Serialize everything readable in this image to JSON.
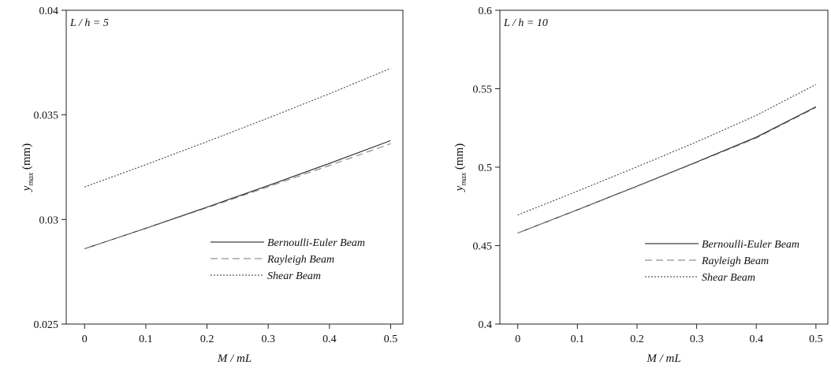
{
  "chart_data": [
    {
      "type": "line",
      "panel_label": "L / h = 5",
      "xlabel": "M / mL",
      "ylabel": "y_max (mm)",
      "ylabel_main": "y",
      "ylabel_sub": "max",
      "ylabel_unit": " (mm)",
      "xlim": [
        -0.03,
        0.52
      ],
      "ylim": [
        0.025,
        0.04
      ],
      "xticks": [
        "0",
        "0.1",
        "0.2",
        "0.3",
        "0.4",
        "0.5"
      ],
      "yticks": [
        "0.025",
        "0.03",
        "0.035",
        "0.04"
      ],
      "legend_position": "lower-right",
      "series": [
        {
          "name": "Bernoulli-Euler Beam",
          "style": "solid",
          "x": [
            0,
            0.1,
            0.2,
            0.3,
            0.4,
            0.5
          ],
          "values": [
            0.0286,
            0.02958,
            0.03059,
            0.03162,
            0.03268,
            0.03377
          ]
        },
        {
          "name": "Rayleigh Beam",
          "style": "dashed",
          "x": [
            0,
            0.1,
            0.2,
            0.3,
            0.4,
            0.5
          ],
          "values": [
            0.0286,
            0.02957,
            0.03056,
            0.03156,
            0.03258,
            0.03362
          ]
        },
        {
          "name": "Shear Beam",
          "style": "dotted",
          "x": [
            0,
            0.1,
            0.2,
            0.3,
            0.4,
            0.5
          ],
          "values": [
            0.03155,
            0.03262,
            0.03372,
            0.03485,
            0.03601,
            0.03722
          ]
        }
      ]
    },
    {
      "type": "line",
      "panel_label": "L / h = 10",
      "xlabel": "M / mL",
      "ylabel": "y_max (mm)",
      "ylabel_main": "y",
      "ylabel_sub": "max",
      "ylabel_unit": " (mm)",
      "xlim": [
        -0.03,
        0.52
      ],
      "ylim": [
        0.4,
        0.6
      ],
      "xticks": [
        "0",
        "0.1",
        "0.2",
        "0.3",
        "0.4",
        "0.5"
      ],
      "yticks": [
        "0.4",
        "0.45",
        "0.5",
        "0.55",
        "0.6"
      ],
      "legend_position": "lower-right",
      "series": [
        {
          "name": "Bernoulli-Euler Beam",
          "style": "solid",
          "x": [
            0,
            0.1,
            0.2,
            0.3,
            0.4,
            0.5
          ],
          "values": [
            0.458,
            0.4728,
            0.4879,
            0.5033,
            0.5191,
            0.5385
          ]
        },
        {
          "name": "Rayleigh Beam",
          "style": "dashed",
          "x": [
            0,
            0.1,
            0.2,
            0.3,
            0.4,
            0.5
          ],
          "values": [
            0.458,
            0.4727,
            0.4877,
            0.503,
            0.5186,
            0.538
          ]
        },
        {
          "name": "Shear Beam",
          "style": "dotted",
          "x": [
            0,
            0.1,
            0.2,
            0.3,
            0.4,
            0.5
          ],
          "values": [
            0.4695,
            0.4847,
            0.5002,
            0.5161,
            0.533,
            0.5527
          ]
        }
      ]
    }
  ]
}
